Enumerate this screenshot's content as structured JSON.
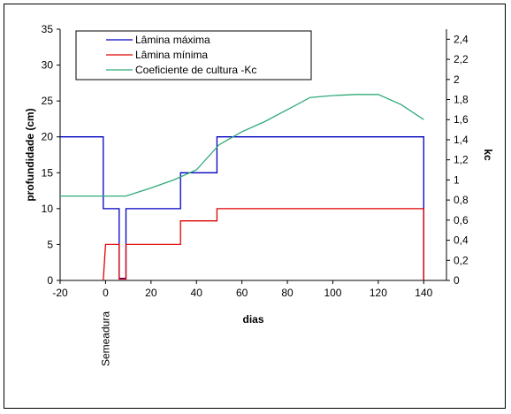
{
  "chart_data": {
    "type": "line",
    "xlabel": "dias",
    "ylabel": "profundidade (cm)",
    "y2label": "kc",
    "xlim": [
      -20,
      150
    ],
    "ylim": [
      0,
      35
    ],
    "y2lim": [
      0,
      2.5
    ],
    "xticks": [
      "-20",
      "0",
      "20",
      "40",
      "60",
      "80",
      "100",
      "120",
      "140"
    ],
    "yticks": [
      "0",
      "5",
      "10",
      "15",
      "20",
      "25",
      "30",
      "35"
    ],
    "y2ticks": [
      "0",
      "0,2",
      "0,4",
      "0,6",
      "0,8",
      "1",
      "1,2",
      "1,4",
      "1,6",
      "1,8",
      "2",
      "2,2",
      "2,4"
    ],
    "legend_position": "top",
    "grid": false,
    "annotations": [
      {
        "text": "Semeadura",
        "x": 0
      }
    ],
    "series": [
      {
        "name": "Lâmina máxima",
        "color": "#0000c0",
        "axis": "left",
        "x": [
          -20,
          -1,
          -1,
          6,
          6,
          9,
          9,
          33,
          33,
          49,
          49,
          140,
          140
        ],
        "y": [
          20,
          20,
          10,
          10,
          0.3,
          0.3,
          10,
          10,
          15,
          15,
          20,
          20,
          0
        ]
      },
      {
        "name": "Lâmina mínima",
        "color": "#e00000",
        "axis": "left",
        "x": [
          -1,
          0,
          0,
          6,
          6,
          9,
          9,
          33,
          33,
          49,
          49,
          140,
          140
        ],
        "y": [
          0,
          5,
          5,
          5,
          0.2,
          0.2,
          5,
          5,
          8.3,
          8.3,
          10,
          10,
          0
        ]
      },
      {
        "name": "Coeficiente de cultura -Kc",
        "color": "#2eaa78",
        "axis": "right",
        "x": [
          -20,
          9,
          20,
          30,
          40,
          50,
          60,
          70,
          80,
          90,
          100,
          110,
          120,
          130,
          140
        ],
        "y": [
          0.84,
          0.84,
          0.92,
          1.0,
          1.1,
          1.35,
          1.48,
          1.58,
          1.7,
          1.82,
          1.84,
          1.85,
          1.85,
          1.75,
          1.6
        ]
      }
    ]
  }
}
